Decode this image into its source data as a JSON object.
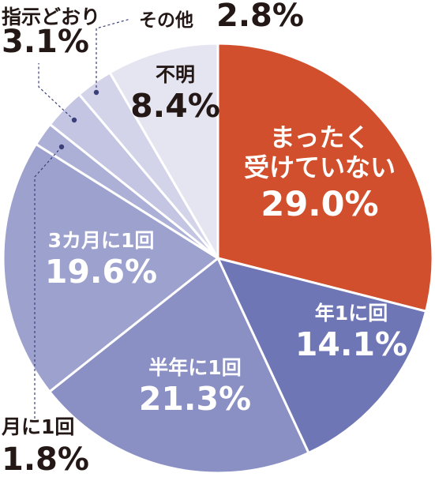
{
  "chart_data": {
    "type": "pie",
    "start_angle_deg": 0,
    "direction": "clockwise",
    "slices": [
      {
        "name": "まっ た く受けていない",
        "lines": [
          "まったく",
          "受けていない"
        ],
        "value": 29.0,
        "value_label": "29.0%",
        "color": "#d14f2c",
        "label_color": "#ffffff",
        "label_style": "inside"
      },
      {
        "name": "年1に回",
        "lines": [
          "年1に回"
        ],
        "value": 14.1,
        "value_label": "14.1%",
        "color": "#6f76b6",
        "label_color": "#ffffff",
        "label_style": "inside"
      },
      {
        "name": "半年に1回",
        "lines": [
          "半年に1回"
        ],
        "value": 21.3,
        "value_label": "21.3%",
        "color": "#8a8fc4",
        "label_color": "#ffffff",
        "label_style": "inside"
      },
      {
        "name": "3カ月に1回",
        "lines": [
          "3カ月に1回"
        ],
        "value": 19.6,
        "value_label": "19.6%",
        "color": "#9da1cd",
        "label_color": "#ffffff",
        "label_style": "inside"
      },
      {
        "name": "月に1回",
        "lines": [
          "月に1回"
        ],
        "value": 1.8,
        "value_label": "1.8%",
        "color": "#adb0d6",
        "label_color": "#231815",
        "label_style": "outside"
      },
      {
        "name": "指示どおり",
        "lines": [
          "指示どおり"
        ],
        "value": 3.1,
        "value_label": "3.1%",
        "color": "#c3c5e2",
        "label_color": "#231815",
        "label_style": "outside"
      },
      {
        "name": "その他",
        "lines": [
          "その他"
        ],
        "value": 2.8,
        "value_label": "2.8%",
        "color": "#d3d4ea",
        "label_color": "#231815",
        "label_style": "outside"
      },
      {
        "name": "不明",
        "lines": [
          "不明"
        ],
        "value": 8.4,
        "value_label": "8.4%",
        "color": "#e5e5f2",
        "label_color": "#231815",
        "label_style": "inside"
      }
    ]
  }
}
